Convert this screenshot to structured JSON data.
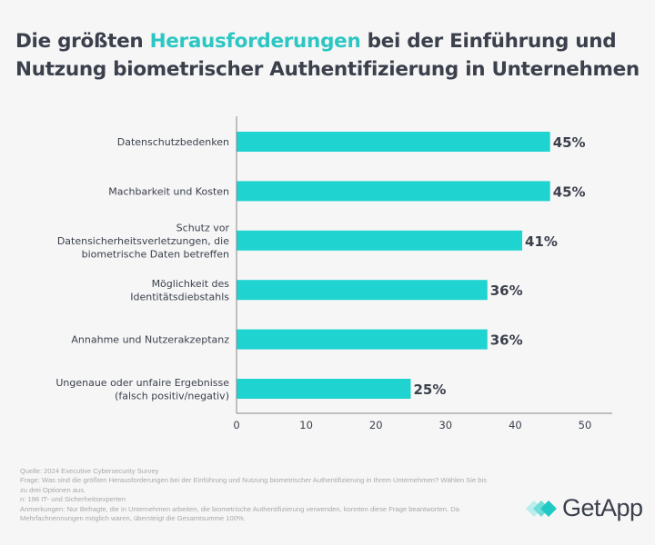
{
  "title": {
    "part1": "Die größten ",
    "highlight": "Herausforderungen",
    "part2": " bei der Einführung und Nutzung biometrischer Authentifizierung in Unternehmen"
  },
  "colors": {
    "bar": "#1fd3d0",
    "title": "#3b404c",
    "highlight": "#2cc6c3",
    "background": "#f6f6f6"
  },
  "chart_data": {
    "type": "bar",
    "orientation": "horizontal",
    "categories": [
      [
        "Datenschutzbedenken"
      ],
      [
        "Machbarkeit und Kosten"
      ],
      [
        "Schutz vor",
        "Datensicherheitsverletzungen, die",
        "biometrische Daten betreffen"
      ],
      [
        "Möglichkeit des",
        "Identitätsdiebstahls"
      ],
      [
        "Annahme und Nutzerakzeptanz"
      ],
      [
        "Ungenaue oder unfaire Ergebnisse",
        "(falsch positiv/negativ)"
      ]
    ],
    "values": [
      45,
      45,
      41,
      36,
      36,
      25
    ],
    "data_labels": [
      "45%",
      "45%",
      "41%",
      "36%",
      "36%",
      "25%"
    ],
    "xlim": [
      0,
      50
    ],
    "xticks": [
      "0",
      "10",
      "20",
      "30",
      "40",
      "50"
    ],
    "grid": false
  },
  "footer": {
    "lines": [
      "Quelle: 2024 Executive Cybersecurity Survey",
      "Frage: Was sind die größten Herausforderungen bei der Einführung und Nutzung biometrischer Authentifizierung in Ihrem Unternehmen? Wählen Sie bis zu drei Optionen aus.",
      "n: 198 IT- und Sicherheitsexperten",
      "Anmerkungen: Nur Befragte, die in Unternehmen arbeiten, die biometrische Authentifizierung verwenden, konnten diese Frage beantworten. Da Mehrfachnennungen möglich waren, übersteigt die Gesamtsumme 100%."
    ]
  },
  "logo": {
    "text": "GetApp"
  }
}
